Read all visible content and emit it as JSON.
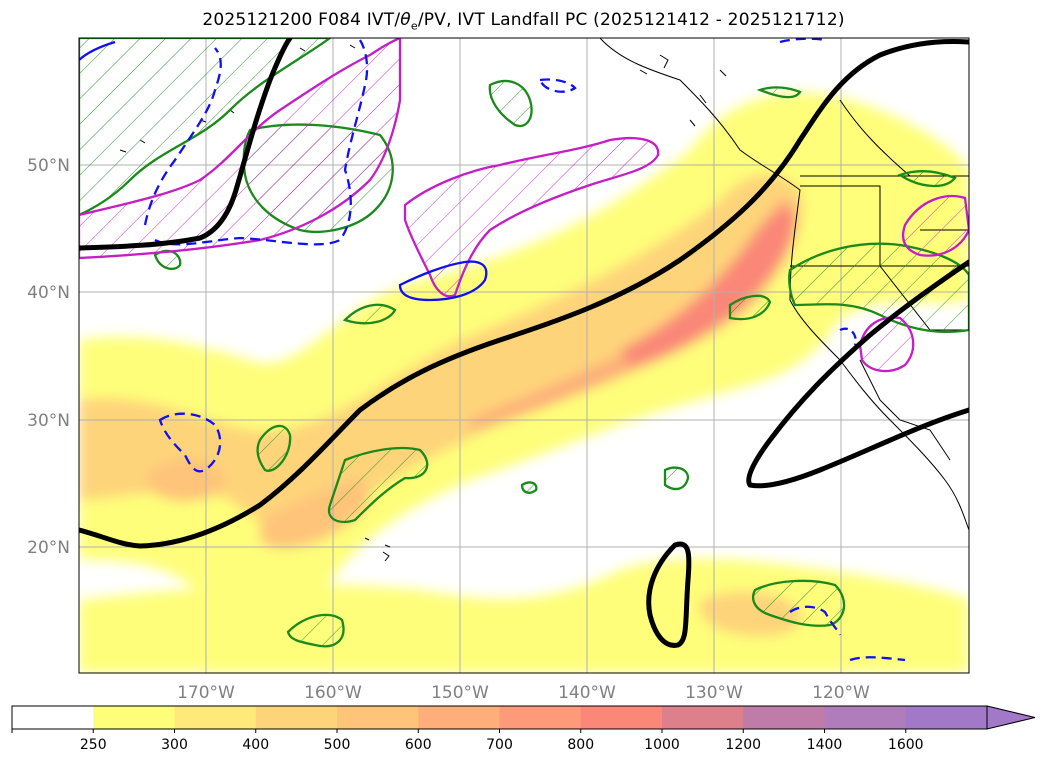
{
  "title": {
    "prefix": "2025121200 F084 IVT/",
    "theta": "θ",
    "theta_sub": "e",
    "suffix": "/PV, IVT Landfall PC (2025121412 - 2025121712)"
  },
  "map": {
    "lon_labels": [
      "170°W",
      "160°W",
      "150°W",
      "140°W",
      "130°W",
      "120°W"
    ],
    "lat_labels": [
      "50°N",
      "40°N",
      "30°N",
      "20°N"
    ],
    "gridlines": true
  },
  "colorbar": {
    "ticks": [
      "250",
      "300",
      "400",
      "500",
      "600",
      "700",
      "800",
      "1000",
      "1200",
      "1400",
      "1600"
    ],
    "colors": [
      "#ffffff",
      "#fefe7a",
      "#fee97a",
      "#fed47a",
      "#fec47a",
      "#fdae7a",
      "#fc9a7a",
      "#fa8778",
      "#de7f8c",
      "#c07ca8",
      "#b07cbc",
      "#a278c8"
    ],
    "extend": "max"
  },
  "contour_colors": {
    "theta_e": "#000000",
    "pv_green": "#1a8a1a",
    "pv_magenta": "#c41ec4",
    "pv_blue": "#1010f0"
  }
}
